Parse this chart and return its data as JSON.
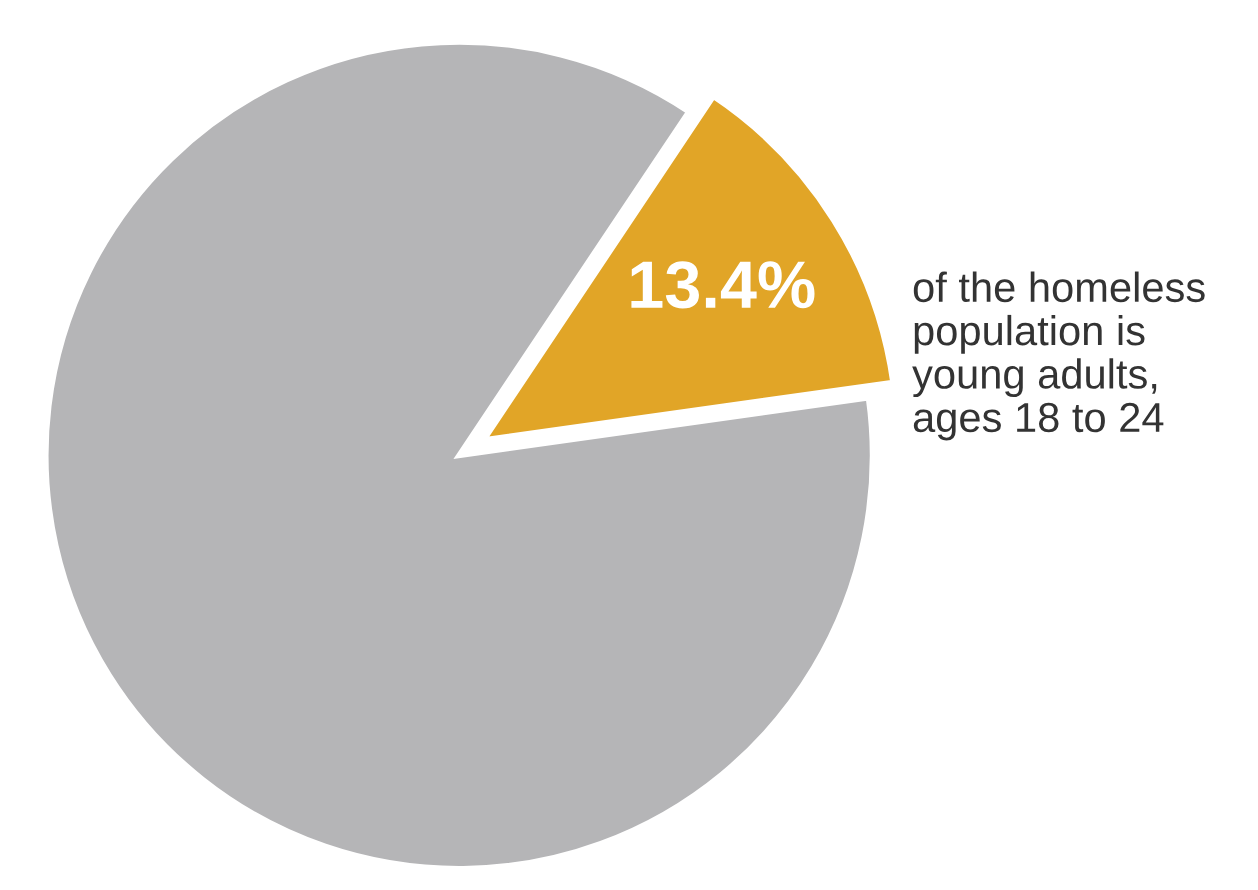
{
  "chart_data": {
    "type": "pie",
    "categories": [
      null,
      null
    ],
    "values": [
      13.4,
      86.6
    ],
    "colors": [
      "#e1a527",
      "#b5b5b7"
    ],
    "value_labels": [
      "13.4%",
      null
    ],
    "annotations": [
      "of the homeless\npopulation is\nyoung adults,\nages 18 to 24"
    ]
  }
}
